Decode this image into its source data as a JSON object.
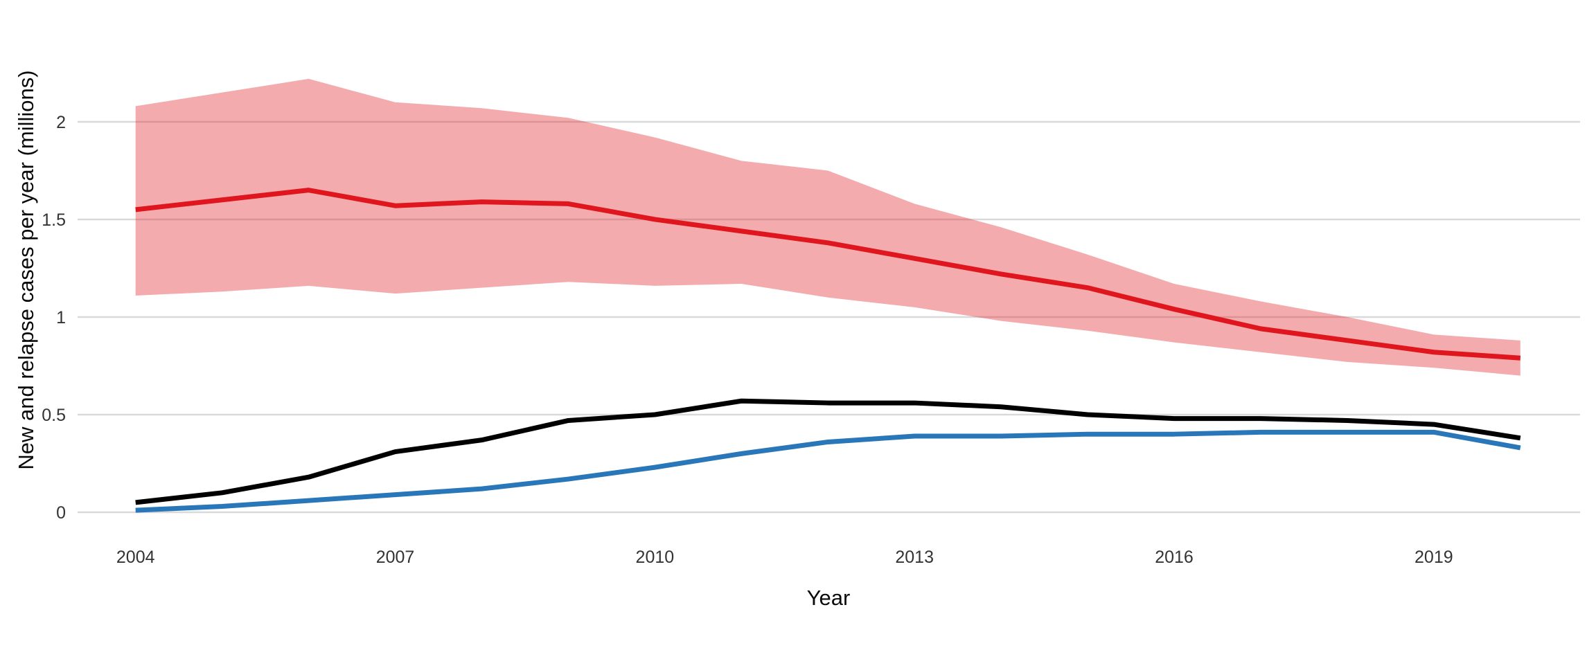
{
  "chart_data": {
    "type": "line",
    "title": "",
    "xlabel": "Year",
    "ylabel": "New and relapse cases per year (millions)",
    "x": [
      2004,
      2005,
      2006,
      2007,
      2008,
      2009,
      2010,
      2011,
      2012,
      2013,
      2014,
      2015,
      2016,
      2017,
      2018,
      2019,
      2020
    ],
    "series": [
      {
        "name": "red trend line (central estimate)",
        "color": "#e0161f",
        "width": 7,
        "values": [
          1.55,
          1.6,
          1.65,
          1.57,
          1.59,
          1.58,
          1.5,
          1.44,
          1.38,
          1.3,
          1.22,
          1.15,
          1.04,
          0.94,
          0.88,
          0.82,
          0.79
        ]
      },
      {
        "name": "black trend line",
        "color": "#000000",
        "width": 7,
        "values": [
          0.05,
          0.1,
          0.18,
          0.31,
          0.37,
          0.47,
          0.5,
          0.57,
          0.56,
          0.56,
          0.54,
          0.5,
          0.48,
          0.48,
          0.47,
          0.45,
          0.38
        ]
      },
      {
        "name": "blue trend line",
        "color": "#2977b9",
        "width": 7,
        "values": [
          0.01,
          0.03,
          0.06,
          0.09,
          0.12,
          0.17,
          0.23,
          0.3,
          0.36,
          0.39,
          0.39,
          0.4,
          0.4,
          0.41,
          0.41,
          0.41,
          0.33
        ]
      }
    ],
    "band": {
      "name": "red uncertainty band around central estimate",
      "fill": "#e0161f",
      "opacity": 0.36,
      "upper": [
        2.08,
        2.15,
        2.22,
        2.1,
        2.07,
        2.02,
        1.92,
        1.8,
        1.75,
        1.58,
        1.46,
        1.32,
        1.17,
        1.08,
        1.0,
        0.91,
        0.88
      ],
      "lower": [
        1.11,
        1.13,
        1.16,
        1.12,
        1.15,
        1.18,
        1.16,
        1.17,
        1.1,
        1.05,
        0.98,
        0.93,
        0.87,
        0.82,
        0.77,
        0.74,
        0.7
      ]
    },
    "x_ticks": [
      2004,
      2007,
      2010,
      2013,
      2016,
      2019
    ],
    "y_ticks": [
      0,
      0.5,
      1,
      1.5,
      2
    ],
    "xlim": [
      2003.33,
      2020.69
    ],
    "ylim": [
      0,
      2.482
    ],
    "grid": "horizontal-only",
    "gridline_color": "#d9d9d9",
    "legend": "none",
    "background": "#ffffff",
    "tick_label_color": "#333333",
    "axis_title_color": "#0a0a0a"
  }
}
